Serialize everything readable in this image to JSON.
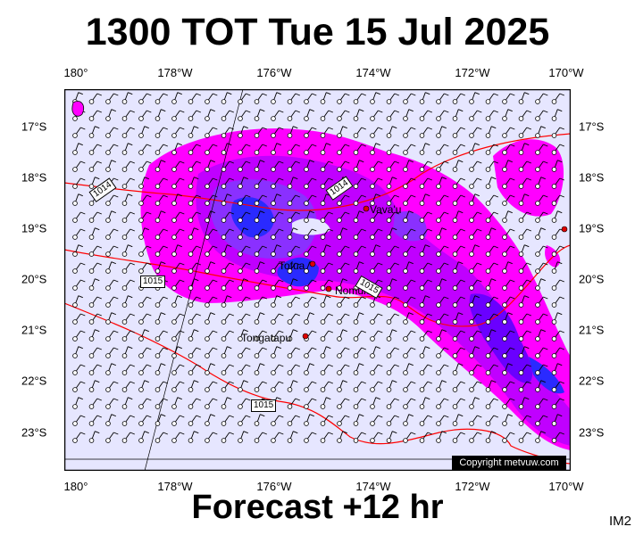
{
  "title": "1300 TOT Tue 15 Jul 2025",
  "footer": "Forecast +12 hr",
  "image_tag": "IM2",
  "copyright": "Copyright metvuw.com",
  "map": {
    "lon_labels": [
      "180°",
      "178°W",
      "176°W",
      "174°W",
      "172°W",
      "170°W"
    ],
    "lat_labels": [
      "17°S",
      "18°S",
      "19°S",
      "20°S",
      "21°S",
      "22°S",
      "23°S"
    ],
    "place_labels": [
      {
        "name": "Vava'u",
        "key": "vavau"
      },
      {
        "name": "Tofua",
        "key": "tofua"
      },
      {
        "name": "Nomuka",
        "key": "nomuka"
      },
      {
        "name": "Tongatapu",
        "key": "tongatapu"
      }
    ],
    "isobar_labels": [
      "1014",
      "1014",
      "1015",
      "1015",
      "1015"
    ],
    "colors": {
      "background": "#e6e6ff",
      "precip_light": "#ff00ff",
      "precip_mid": "#b000ff",
      "precip_heavy": "#6a00ff",
      "precip_core": "#2a2aff",
      "isobar": "#ff0000"
    }
  }
}
